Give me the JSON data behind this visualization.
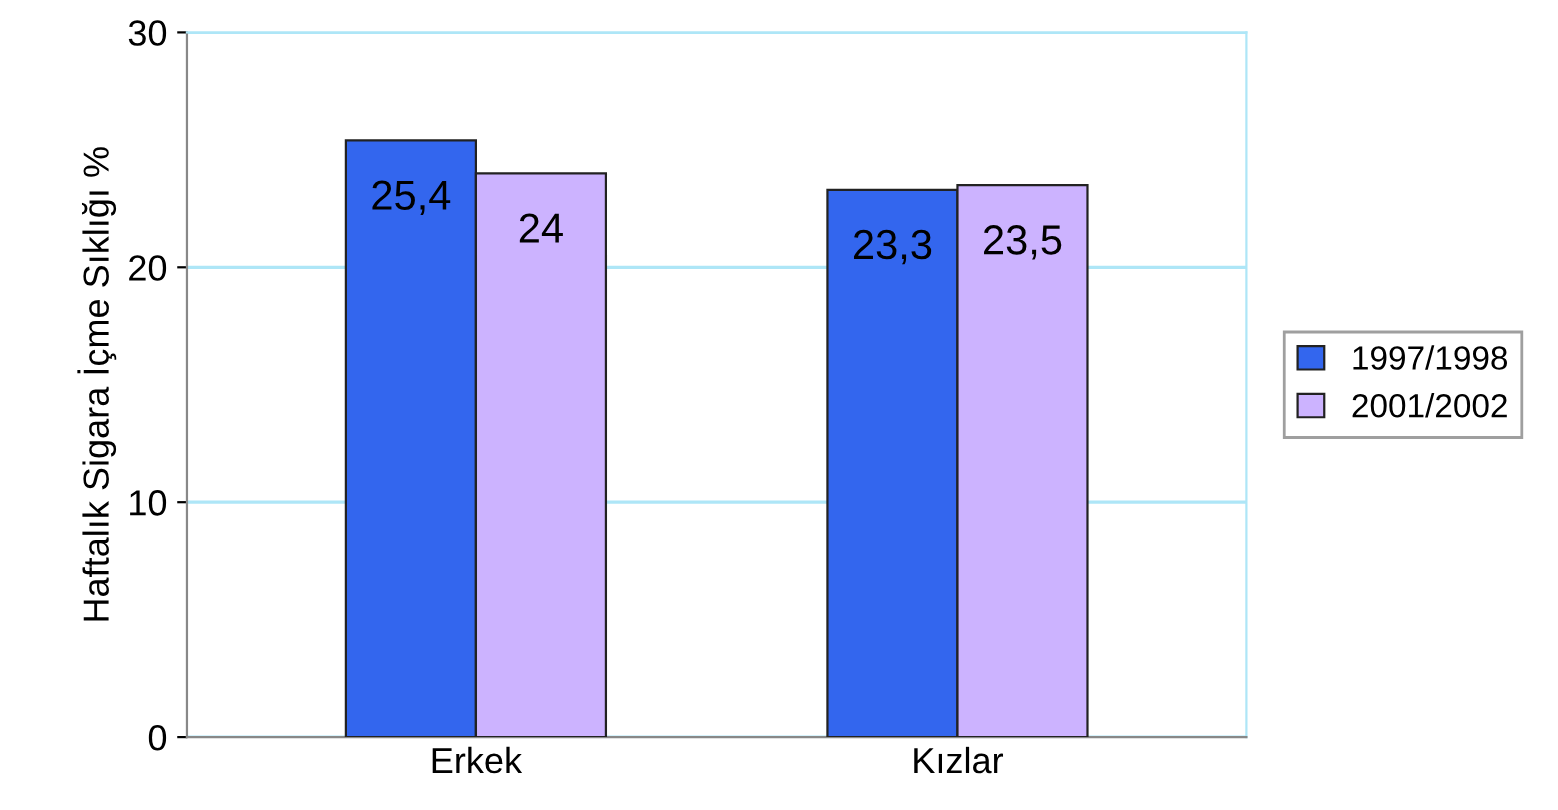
{
  "chart_data": {
    "type": "bar",
    "ylabel": "Haftalık Sigara İçme Sıklığı %",
    "categories": [
      "Erkek",
      "Kızlar"
    ],
    "series": [
      {
        "name": "1997/1998",
        "color": "#3366ee",
        "values": [
          25.4,
          23.3
        ],
        "value_labels": [
          "25,4",
          "23,3"
        ]
      },
      {
        "name": "2001/2002",
        "color": "#ccb3ff",
        "values": [
          24,
          23.5
        ],
        "value_labels": [
          "24",
          "23,5"
        ]
      }
    ],
    "ylim": [
      0,
      30
    ],
    "yticks": [
      0,
      10,
      20,
      30
    ],
    "grid": "y",
    "legend": "right"
  }
}
